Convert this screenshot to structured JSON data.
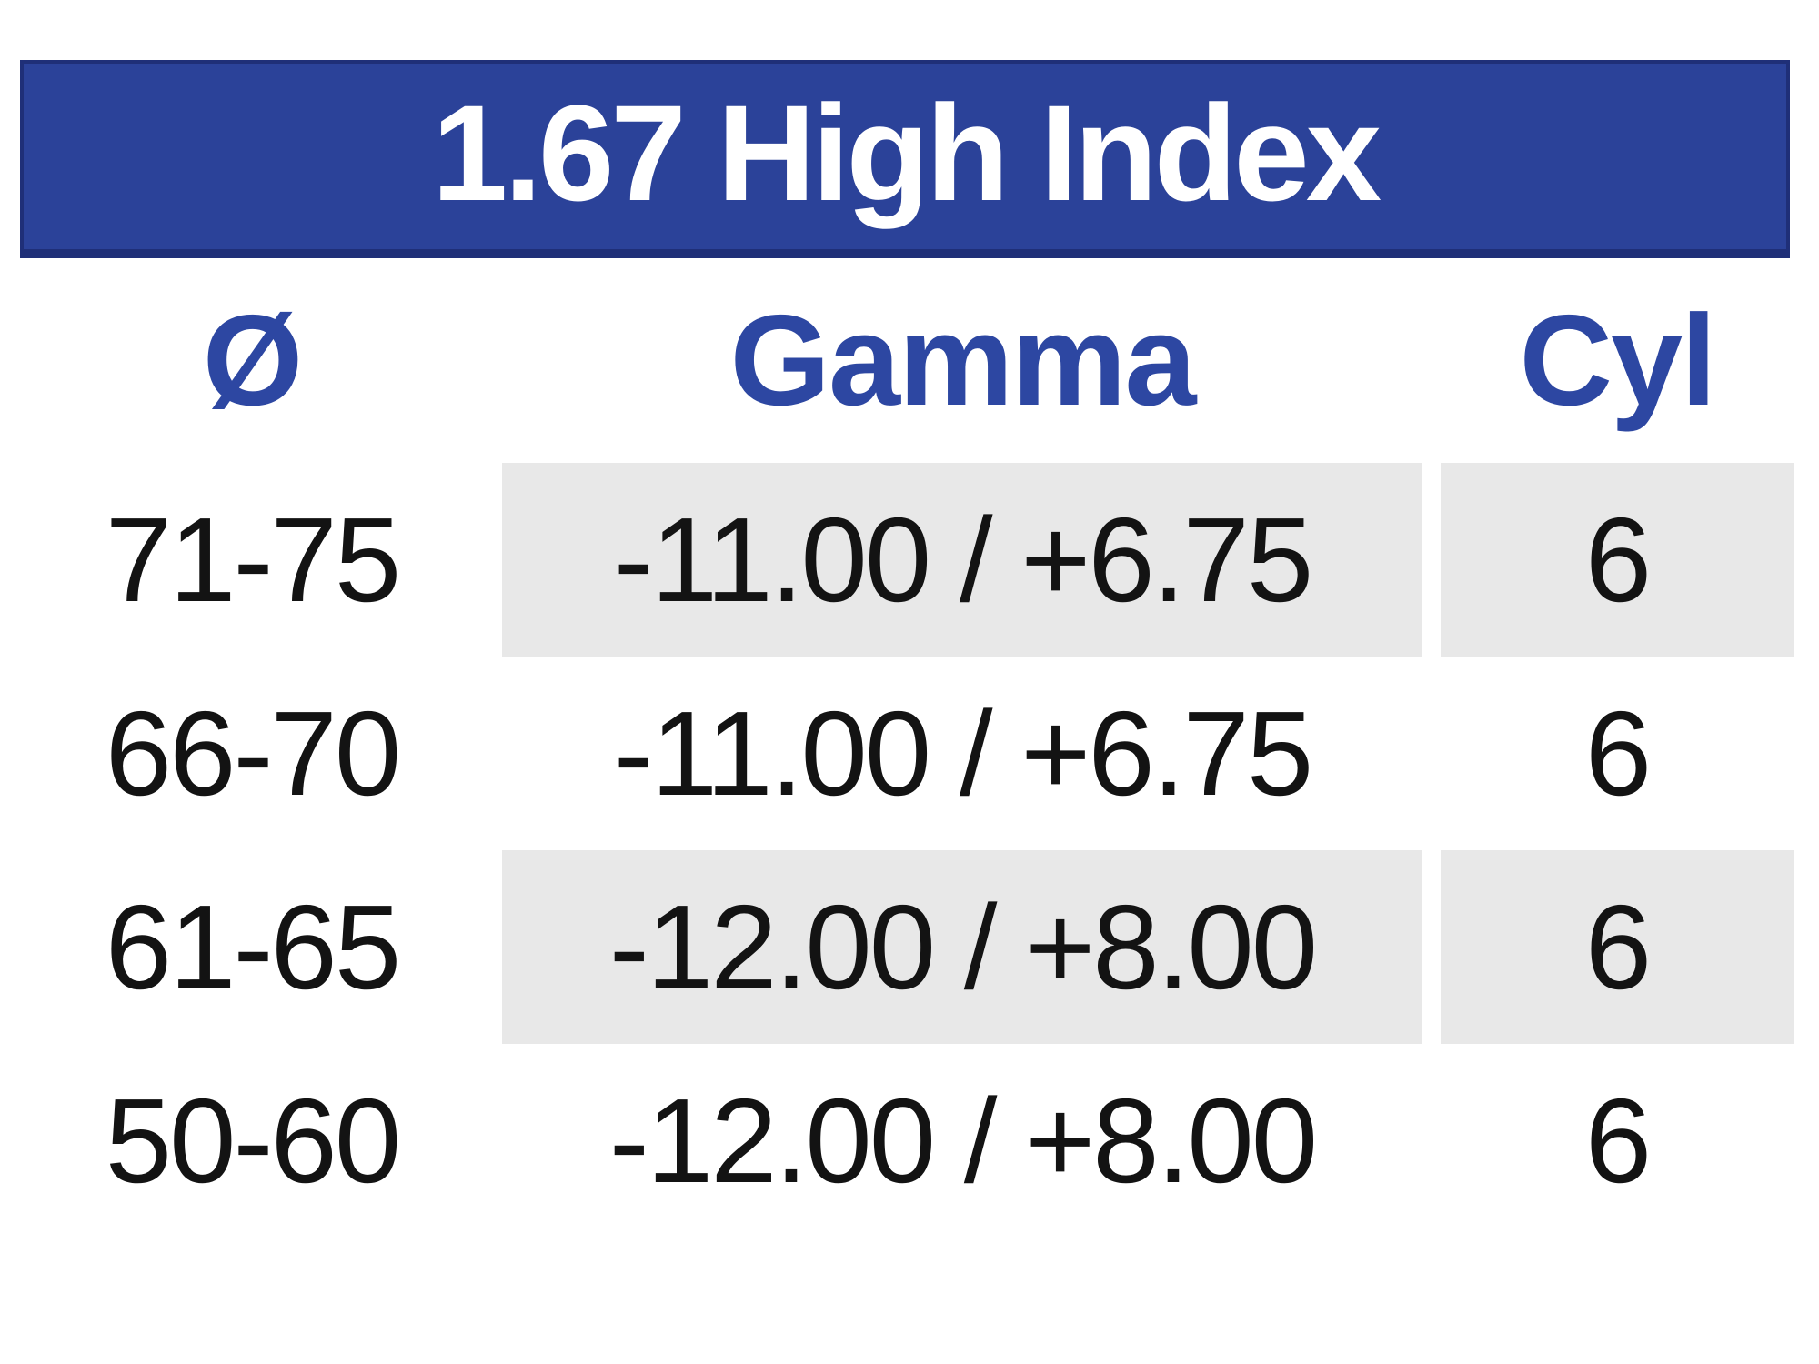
{
  "title": "1.67 High Index",
  "table": {
    "columns": [
      {
        "key": "diameter",
        "label": "Ø"
      },
      {
        "key": "gamma",
        "label": "Gamma"
      },
      {
        "key": "cyl",
        "label": "Cyl"
      }
    ],
    "rows": [
      {
        "diameter": "71-75",
        "gamma": "-11.00 / +6.75",
        "cyl": "6",
        "shaded": true
      },
      {
        "diameter": "66-70",
        "gamma": "-11.00 / +6.75",
        "cyl": "6",
        "shaded": false
      },
      {
        "diameter": "61-65",
        "gamma": "-12.00 / +8.00",
        "cyl": "6",
        "shaded": true
      },
      {
        "diameter": "50-60",
        "gamma": "-12.00 / +8.00",
        "cyl": "6",
        "shaded": false
      }
    ]
  },
  "colors": {
    "title_bar_bg": "#2b4299",
    "title_bar_border": "#1f2f78",
    "title_text": "#ffffff",
    "column_header_text": "#2d47a2",
    "shaded_cell_bg": "#e8e8e8",
    "body_text": "#131313",
    "page_bg": "#ffffff"
  }
}
